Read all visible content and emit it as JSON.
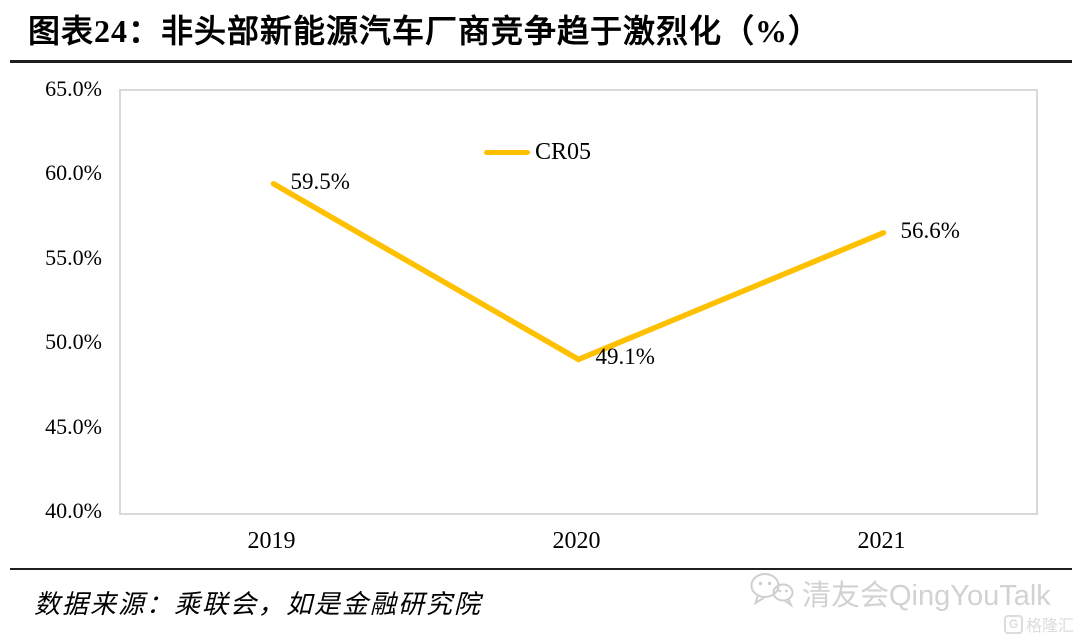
{
  "header": {
    "title": "图表24：非头部新能源汽车厂商竞争趋于激烈化（%）"
  },
  "chart_data": {
    "type": "line",
    "title": "图表24：非头部新能源汽车厂商竞争趋于激烈化（%）",
    "categories": [
      "2019",
      "2020",
      "2021"
    ],
    "series": [
      {
        "name": "CR05",
        "values": [
          59.5,
          49.1,
          56.6
        ],
        "color": "#FFC000"
      }
    ],
    "data_labels": [
      "59.5%",
      "49.1%",
      "56.6%"
    ],
    "ylim": [
      40,
      65
    ],
    "ytick_step": 5,
    "yticks": [
      "65.0%",
      "60.0%",
      "55.0%",
      "50.0%",
      "45.0%",
      "40.0%"
    ],
    "grid": false,
    "legend_position": "top-center",
    "xlabel": "",
    "ylabel": ""
  },
  "footer": {
    "source": "数据来源：乘联会，如是金融研究院",
    "watermark": "清友会QingYouTalk",
    "brand_logo_letter": "G",
    "brand_logo": "格隆汇"
  },
  "colors": {
    "line": "#FFC000",
    "plot_border": "#d9d9d9",
    "rule": "#1f1f1f",
    "watermark": "#d2d2d2"
  }
}
